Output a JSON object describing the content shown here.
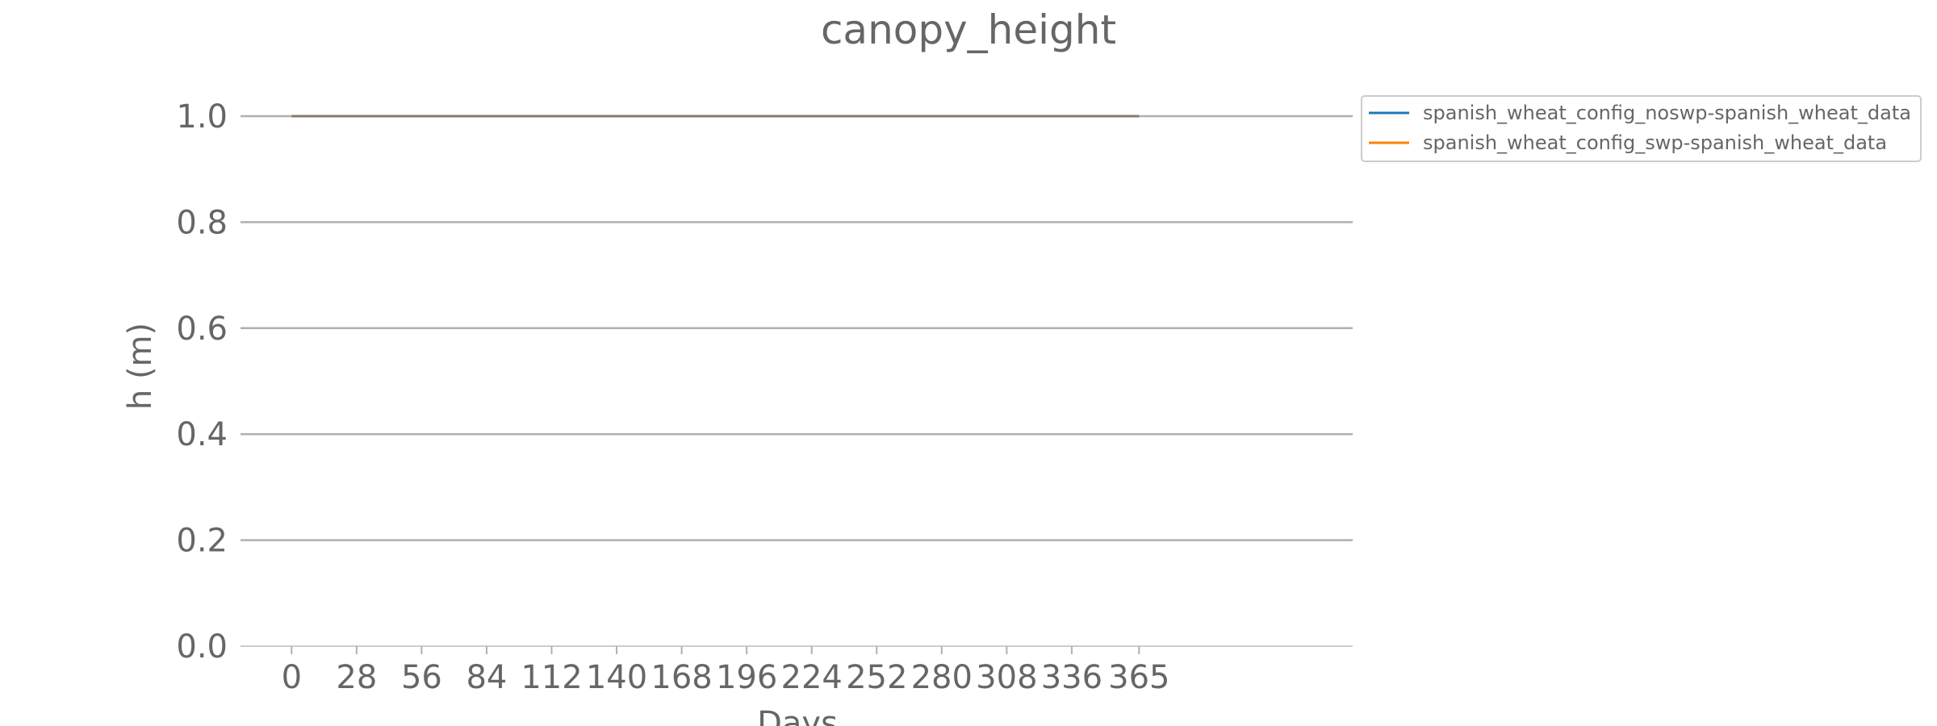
{
  "chart_data": {
    "type": "line",
    "title": "canopy_height",
    "xlabel": "Days",
    "ylabel": "h (m)",
    "xlim": [
      -22,
      457
    ],
    "ylim": [
      0.0,
      1.0
    ],
    "x_ticks": [
      0,
      28,
      56,
      84,
      112,
      140,
      168,
      196,
      224,
      252,
      280,
      308,
      336,
      365
    ],
    "x_tick_labels": [
      "0",
      "28",
      "56",
      "84",
      "112",
      "140",
      "168",
      "196",
      "224",
      "252",
      "280",
      "308",
      "336",
      "365"
    ],
    "y_ticks": [
      0.0,
      0.2,
      0.4,
      0.6,
      0.8,
      1.0
    ],
    "y_tick_labels": [
      "0.0",
      "0.2",
      "0.4",
      "0.6",
      "0.8",
      "1.0"
    ],
    "grid": "horizontal",
    "legend_position": "outside-top-right",
    "x": [
      0,
      365
    ],
    "series": [
      {
        "name": "spanish_wheat_config_noswp-spanish_wheat_data",
        "color": "#1f77b4",
        "values": [
          1.0,
          1.0
        ]
      },
      {
        "name": "spanish_wheat_config_swp-spanish_wheat_data",
        "color": "#ff7f0e",
        "values": [
          1.0,
          1.0
        ]
      }
    ]
  }
}
